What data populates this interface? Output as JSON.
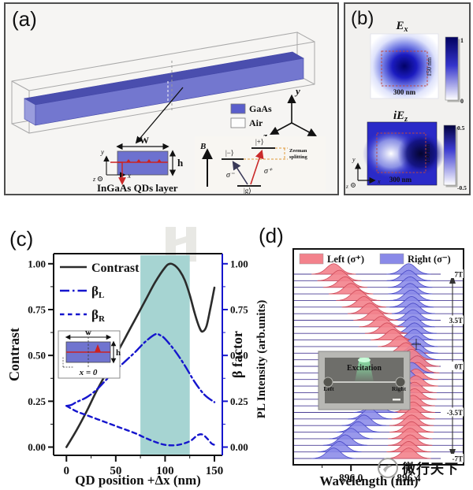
{
  "watermark": {
    "text": "微行天下"
  },
  "panels": {
    "a": {
      "label": "(a)",
      "legend": {
        "gaas": "GaAs",
        "air": "Air",
        "gaas_color": "#5a5ecb",
        "air_color": "#fdfdfd"
      },
      "axes": {
        "x": "x",
        "y": "y",
        "z": "z"
      },
      "cross_section": {
        "width_label": "W",
        "height_label": "h",
        "x": "x",
        "y": "y",
        "z": "z",
        "caption": "InGaAs QDs layer"
      },
      "energy_diagram": {
        "b_label": "B",
        "plus_level": "|+⟩",
        "minus_level": "|−⟩",
        "ground_level": "|g⟩",
        "sigma_minus": "σ⁻",
        "sigma_plus": "σ⁺",
        "zeeman_line1": "Zeeman",
        "zeeman_line2": "splitting"
      }
    },
    "b": {
      "label": "(b)",
      "map_top": {
        "title_main": "E",
        "title_sub": "x",
        "width_label": "300 nm",
        "height_label": "150 nm",
        "cbar_max": "1",
        "cbar_min": "0"
      },
      "map_bottom": {
        "title_main": "iE",
        "title_sub": "z",
        "width_label": "300 nm",
        "height_label": "150 nm",
        "cbar_max": "0.5",
        "cbar_min": "-0.5"
      },
      "axes": {
        "x": "x",
        "y": "y",
        "z": "z"
      }
    },
    "c": {
      "label": "(c)"
    },
    "d": {
      "label": "(d)"
    }
  },
  "chart_data": [
    {
      "panel": "c",
      "type": "line",
      "xlabel": "QD position +Δx (nm)",
      "ylabel_left": "Contrast",
      "ylabel_right": "β factor",
      "xlim": [
        -13,
        158
      ],
      "ylim": [
        -0.045,
        1.055
      ],
      "xticks": [
        0,
        50,
        100,
        150
      ],
      "xminor": [
        25,
        75,
        125
      ],
      "yticks": [
        1.0,
        0.75,
        0.5,
        0.25,
        0.0
      ],
      "yminor": [
        0.125,
        0.375,
        0.625,
        0.875
      ],
      "left_axis_color": "#111111",
      "right_axis_color": "#1515cd",
      "shaded_region": {
        "x0": 75,
        "x1": 125,
        "color": "#a6d4d2"
      },
      "legend": [
        {
          "label_main": "Contrast",
          "label_sub": "",
          "style": "solid",
          "color": "#2b2b2b"
        },
        {
          "label_main": "β",
          "label_sub": "L",
          "style": "dashdot",
          "color": "#1515cd"
        },
        {
          "label_main": "β",
          "label_sub": "R",
          "style": "dashed",
          "color": "#1515cd"
        }
      ],
      "inset": {
        "w": "w",
        "h": "h",
        "x0": "x = 0"
      },
      "series": [
        {
          "name": "Contrast",
          "axis": "left",
          "style": "solid",
          "color": "#2b2b2b",
          "width": 2.6,
          "x": [
            0,
            10,
            20,
            30,
            40,
            50,
            60,
            70,
            80,
            90,
            100,
            105,
            110,
            115,
            120,
            125,
            130,
            135,
            138,
            142,
            146,
            150
          ],
          "y": [
            0.0,
            0.09,
            0.19,
            0.3,
            0.4,
            0.5,
            0.6,
            0.7,
            0.8,
            0.9,
            0.98,
            1.0,
            0.99,
            0.96,
            0.91,
            0.83,
            0.73,
            0.65,
            0.63,
            0.66,
            0.76,
            0.87
          ]
        },
        {
          "name": "βL",
          "axis": "right",
          "style": "dashdot",
          "color": "#1515cd",
          "width": 2.4,
          "x": [
            0,
            5,
            10,
            20,
            30,
            40,
            50,
            60,
            70,
            80,
            90,
            95,
            100,
            110,
            120,
            130,
            140,
            150
          ],
          "y": [
            0.225,
            0.23,
            0.245,
            0.27,
            0.31,
            0.365,
            0.42,
            0.47,
            0.52,
            0.575,
            0.615,
            0.61,
            0.59,
            0.525,
            0.445,
            0.355,
            0.285,
            0.245
          ]
        },
        {
          "name": "βR",
          "axis": "right",
          "style": "dashed",
          "color": "#1515cd",
          "width": 2.4,
          "x": [
            0,
            10,
            20,
            30,
            40,
            50,
            60,
            70,
            80,
            90,
            100,
            110,
            118,
            126,
            133,
            138,
            143,
            147,
            150
          ],
          "y": [
            0.225,
            0.195,
            0.175,
            0.155,
            0.135,
            0.115,
            0.095,
            0.075,
            0.05,
            0.028,
            0.012,
            0.01,
            0.018,
            0.035,
            0.065,
            0.068,
            0.045,
            0.02,
            0.012
          ]
        }
      ]
    },
    {
      "panel": "d",
      "type": "waterfall",
      "xlabel": "Wavelength (nm)",
      "ylabel": "PL Intensity (arb.units)",
      "xlim": [
        895.6,
        896.78
      ],
      "xticks": [
        896.0,
        896.4
      ],
      "xminor": [
        895.8,
        896.2,
        896.6
      ],
      "legend": [
        {
          "label": "Left (σ⁺)",
          "fill": "#f3828c",
          "stroke": "#cf4b5a"
        },
        {
          "label": "Right (σ⁻)",
          "fill": "#8a8ae8",
          "stroke": "#4949c6"
        }
      ],
      "field_axis": {
        "labels": [
          "7T",
          "3.5T",
          "0T",
          "-3.5T",
          "-7T"
        ],
        "rows": [
          0,
          7,
          14,
          21,
          28
        ]
      },
      "baseline_color": "#4b3f96",
      "peak": {
        "sigma_nm": 0.048,
        "height_rows": 1.6
      },
      "inset": {
        "excitation": "Excitation",
        "left": "Left",
        "right": "Right"
      },
      "traces": [
        {
          "B": 7,
          "pink": 895.88,
          "blue": 896.4
        },
        {
          "B": 6.5,
          "pink": 895.92,
          "blue": 896.4
        },
        {
          "B": 6,
          "pink": 895.96,
          "blue": 896.41
        },
        {
          "B": 5.5,
          "pink": 896.0,
          "blue": 896.41
        },
        {
          "B": 5,
          "pink": 896.05,
          "blue": 896.42
        },
        {
          "B": 4.5,
          "pink": 896.09,
          "blue": 896.42
        },
        {
          "B": 4,
          "pink": 896.13,
          "blue": 896.43
        },
        {
          "B": 3.5,
          "pink": 896.17,
          "blue": 896.43
        },
        {
          "B": 3,
          "pink": 896.21,
          "blue": 896.43
        },
        {
          "B": 2.5,
          "pink": 896.25,
          "blue": 896.44
        },
        {
          "B": 2,
          "pink": 896.29,
          "blue": 896.44
        },
        {
          "B": 1.5,
          "pink": 896.34,
          "blue": 896.45
        },
        {
          "B": 1,
          "pink": 896.38,
          "blue": 896.45
        },
        {
          "B": 0.5,
          "pink": 896.42,
          "blue": 896.46
        },
        {
          "B": 0,
          "pink": 896.46,
          "blue": 896.46
        },
        {
          "B": -0.5,
          "pink": 896.46,
          "blue": 896.42
        },
        {
          "B": -1,
          "pink": 896.45,
          "blue": 896.38
        },
        {
          "B": -1.5,
          "pink": 896.45,
          "blue": 896.34
        },
        {
          "B": -2,
          "pink": 896.44,
          "blue": 896.29
        },
        {
          "B": -2.5,
          "pink": 896.44,
          "blue": 896.25
        },
        {
          "B": -3,
          "pink": 896.43,
          "blue": 896.21
        },
        {
          "B": -3.5,
          "pink": 896.43,
          "blue": 896.17
        },
        {
          "B": -4,
          "pink": 896.43,
          "blue": 896.13
        },
        {
          "B": -4.5,
          "pink": 896.42,
          "blue": 896.09
        },
        {
          "B": -5,
          "pink": 896.42,
          "blue": 896.05
        },
        {
          "B": -5.5,
          "pink": 896.41,
          "blue": 896.0
        },
        {
          "B": -6,
          "pink": 896.41,
          "blue": 895.96
        },
        {
          "B": -6.5,
          "pink": 896.4,
          "blue": 895.92
        },
        {
          "B": -7,
          "pink": 896.4,
          "blue": 895.88
        }
      ]
    }
  ]
}
